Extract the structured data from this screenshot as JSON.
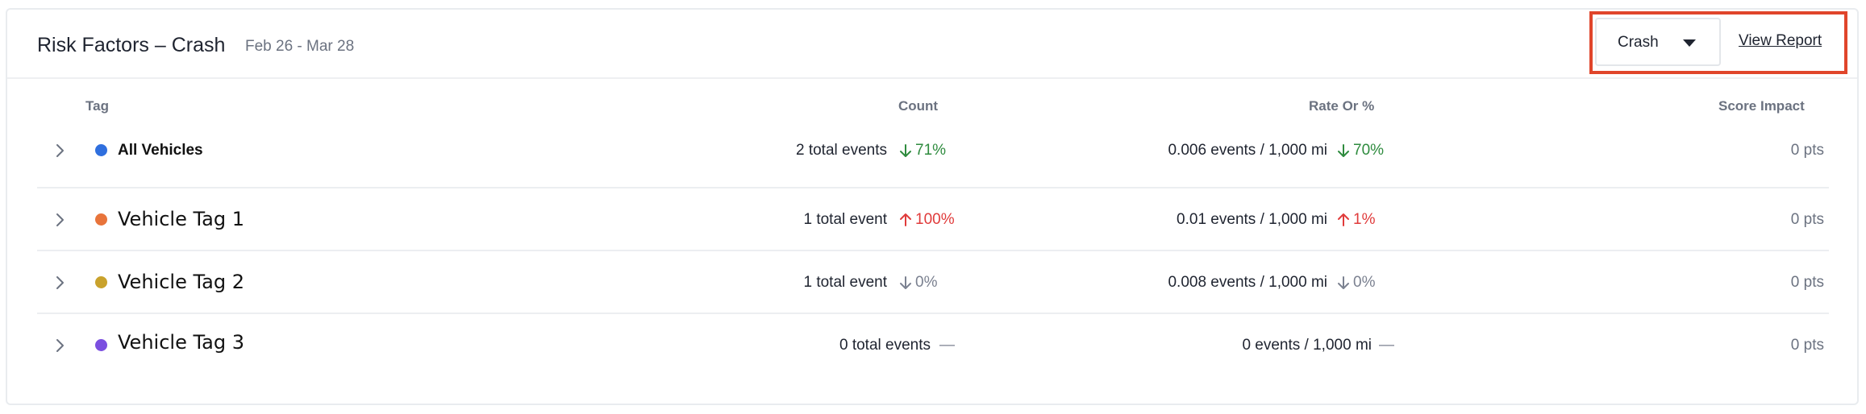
{
  "header": {
    "title": "Risk Factors – Crash",
    "date_range": "Feb 26 - Mar 28",
    "dropdown_value": "Crash",
    "view_report_label": "View Report",
    "highlight_color": "#e0452b"
  },
  "columns": {
    "tag": "Tag",
    "count": "Count",
    "rate": "Rate Or %",
    "score": "Score Impact"
  },
  "rows": [
    {
      "name": "All Vehicles",
      "dot_color": "#2f6fde",
      "count": "2 total events",
      "count_delta": "71%",
      "count_dir": "down",
      "rate": "0.006 events / 1,000 mi",
      "rate_delta": "70%",
      "rate_dir": "down",
      "score": "0 pts"
    },
    {
      "name": "Vehicle Tag 1",
      "dot_color": "#e8743b",
      "count": "1 total event",
      "count_delta": "100%",
      "count_dir": "up",
      "rate": "0.01 events / 1,000 mi",
      "rate_delta": "1%",
      "rate_dir": "up",
      "score": "0 pts"
    },
    {
      "name": "Vehicle Tag 2",
      "dot_color": "#c9a22c",
      "count": "1 total event",
      "count_delta": "0%",
      "count_dir": "down-neutral",
      "rate": "0.008 events / 1,000 mi",
      "rate_delta": "0%",
      "rate_dir": "down-neutral",
      "score": "0 pts"
    },
    {
      "name": "Vehicle Tag 3",
      "dot_color": "#7b4fe0",
      "count": "0 total events",
      "count_delta": "—",
      "count_dir": "none",
      "rate": "0 events / 1,000 mi",
      "rate_delta": "—",
      "rate_dir": "none",
      "score": "0 pts"
    }
  ]
}
